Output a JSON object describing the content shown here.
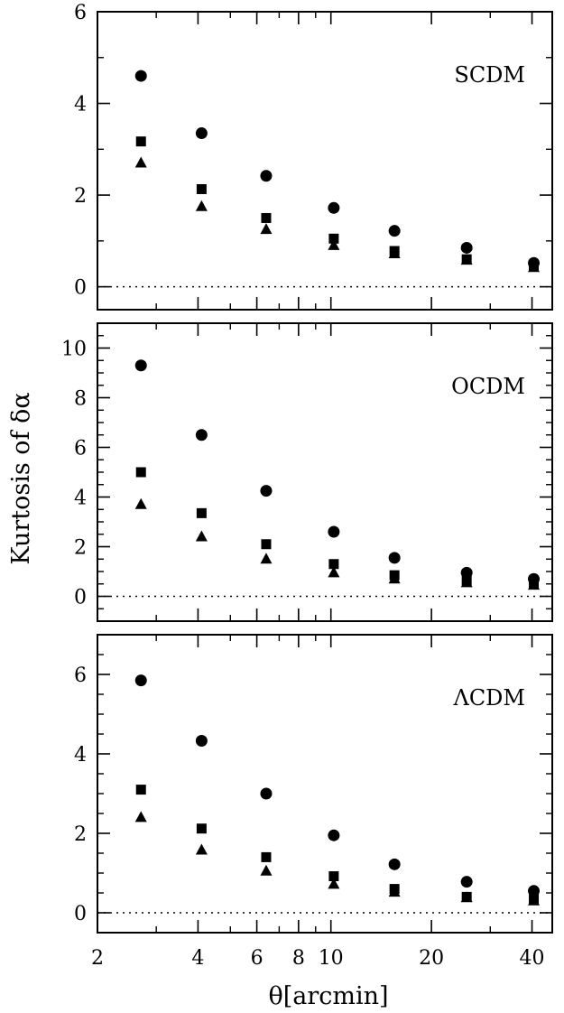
{
  "chart_data": [
    {
      "type": "scatter",
      "panel_label": "SCDM",
      "x_scale": "log",
      "xlim": [
        2,
        46
      ],
      "ylim": [
        -0.5,
        6
      ],
      "yticks": [
        0,
        2,
        4,
        6
      ],
      "reference_line": 0,
      "x": [
        2.7,
        4.1,
        6.4,
        10.2,
        15.5,
        25.5,
        40.5
      ],
      "series": [
        {
          "marker": "circle",
          "values": [
            4.6,
            3.35,
            2.42,
            1.72,
            1.22,
            0.85,
            0.52
          ]
        },
        {
          "marker": "square",
          "values": [
            3.17,
            2.13,
            1.5,
            1.05,
            0.78,
            0.6,
            0.45
          ]
        },
        {
          "marker": "triangle",
          "values": [
            2.7,
            1.75,
            1.25,
            0.9,
            0.72,
            0.58,
            0.42
          ]
        }
      ]
    },
    {
      "type": "scatter",
      "panel_label": "OCDM",
      "x_scale": "log",
      "xlim": [
        2,
        46
      ],
      "ylim": [
        -1,
        11
      ],
      "yticks": [
        0,
        2,
        4,
        6,
        8,
        10
      ],
      "reference_line": 0,
      "x": [
        2.7,
        4.1,
        6.4,
        10.2,
        15.5,
        25.5,
        40.5
      ],
      "series": [
        {
          "marker": "circle",
          "values": [
            9.3,
            6.5,
            4.25,
            2.6,
            1.55,
            0.95,
            0.7
          ]
        },
        {
          "marker": "square",
          "values": [
            5.0,
            3.35,
            2.1,
            1.3,
            0.85,
            0.65,
            0.5
          ]
        },
        {
          "marker": "triangle",
          "values": [
            3.7,
            2.4,
            1.5,
            0.95,
            0.7,
            0.55,
            0.45
          ]
        }
      ]
    },
    {
      "type": "scatter",
      "panel_label": "ΛCDM",
      "x_scale": "log",
      "xlim": [
        2,
        46
      ],
      "ylim": [
        -0.5,
        7
      ],
      "yticks": [
        0,
        2,
        4,
        6
      ],
      "xticks": [
        2,
        4,
        6,
        8,
        10,
        20,
        40
      ],
      "xticklabels": [
        "2",
        "4",
        "6",
        "8",
        "10",
        "20",
        "40"
      ],
      "reference_line": 0,
      "x": [
        2.7,
        4.1,
        6.4,
        10.2,
        15.5,
        25.5,
        40.5
      ],
      "series": [
        {
          "marker": "circle",
          "values": [
            5.85,
            4.33,
            3.0,
            1.95,
            1.22,
            0.78,
            0.55
          ]
        },
        {
          "marker": "square",
          "values": [
            3.1,
            2.12,
            1.4,
            0.92,
            0.6,
            0.4,
            0.35
          ]
        },
        {
          "marker": "triangle",
          "values": [
            2.4,
            1.58,
            1.05,
            0.72,
            0.52,
            0.38,
            0.3
          ]
        }
      ]
    }
  ],
  "axes": {
    "xlabel": "θ[arcmin]",
    "ylabel": "Kurtosis of δα"
  }
}
